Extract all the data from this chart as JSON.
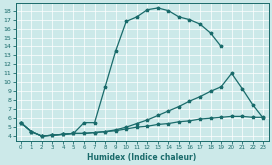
{
  "xlabel": "Humidex (Indice chaleur)",
  "background_color": "#cce9e9",
  "grid_color": "#b0d8d8",
  "line_color": "#1a6b6b",
  "xlim": [
    -0.5,
    23.5
  ],
  "ylim": [
    3.5,
    18.8
  ],
  "xticks": [
    0,
    1,
    2,
    3,
    4,
    5,
    6,
    7,
    8,
    9,
    10,
    11,
    12,
    13,
    14,
    15,
    16,
    17,
    18,
    19,
    20,
    21,
    22,
    23
  ],
  "yticks": [
    4,
    5,
    6,
    7,
    8,
    9,
    10,
    11,
    12,
    13,
    14,
    15,
    16,
    17,
    18
  ],
  "curve1_x": [
    0,
    1,
    2,
    3,
    4,
    5,
    6,
    7,
    8,
    9,
    10,
    11,
    12,
    13,
    14,
    15,
    16,
    17,
    18,
    19
  ],
  "curve1_y": [
    5.5,
    4.5,
    4.0,
    4.1,
    4.2,
    4.3,
    5.5,
    5.5,
    9.5,
    13.5,
    16.8,
    17.3,
    18.1,
    18.3,
    18.0,
    17.3,
    17.0,
    16.5,
    15.5,
    14.0
  ],
  "curve2_x": [
    0,
    1,
    2,
    3,
    4,
    5,
    6,
    7,
    8,
    9,
    10,
    11,
    12,
    13,
    14,
    15,
    16,
    17,
    18,
    19,
    20,
    21,
    22,
    23
  ],
  "curve2_y": [
    5.5,
    4.5,
    4.0,
    4.1,
    4.2,
    4.3,
    4.3,
    4.4,
    4.5,
    4.6,
    4.8,
    5.0,
    5.1,
    5.3,
    5.4,
    5.6,
    5.7,
    5.9,
    6.0,
    6.1,
    6.2,
    6.2,
    6.1,
    6.1
  ],
  "curve3_x": [
    0,
    1,
    2,
    3,
    4,
    5,
    6,
    7,
    8,
    9,
    10,
    11,
    12,
    13,
    14,
    15,
    16,
    17,
    18,
    19,
    20,
    21,
    22,
    23
  ],
  "curve3_y": [
    5.5,
    4.5,
    4.0,
    4.1,
    4.2,
    4.3,
    4.3,
    4.4,
    4.5,
    4.7,
    5.0,
    5.4,
    5.8,
    6.3,
    6.8,
    7.3,
    7.9,
    8.4,
    9.0,
    9.5,
    11.0,
    9.3,
    7.5,
    6.0
  ],
  "marker_size": 2.5,
  "linewidth": 0.9,
  "xlabel_fontsize": 5.5,
  "tick_fontsize_x": 4.0,
  "tick_fontsize_y": 4.5
}
